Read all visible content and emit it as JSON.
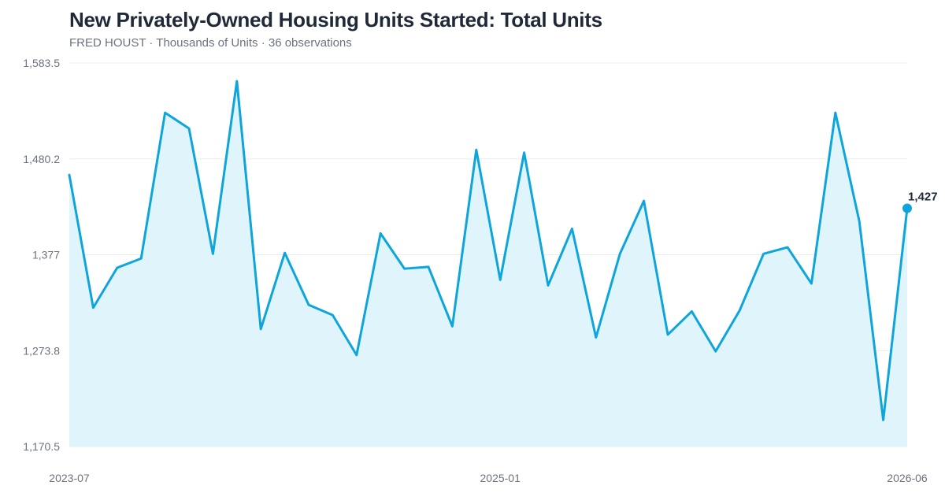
{
  "chart_data": {
    "type": "line",
    "title": "New Privately-Owned Housing Units Started: Total Units",
    "subtitle": "FRED HOUST · Thousands of Units · 36 observations",
    "y_ticks": [
      "1,583.5",
      "1,480.2",
      "1,377",
      "1,273.8",
      "1,170.5"
    ],
    "x_ticks": [
      "2023-07",
      "2025-01",
      "2026-06"
    ],
    "ylim": [
      1170.5,
      1583.5
    ],
    "grid": true,
    "end_label": "1,427",
    "colors": {
      "line": "#0ea5dc",
      "area": "#e0f4fb",
      "grid": "#e8ecf0",
      "baseline": "#d6eef7"
    },
    "series": [
      {
        "x": [
          "2023-07",
          "2023-08",
          "2023-09",
          "2023-10",
          "2023-11",
          "2023-12",
          "2024-01",
          "2024-02",
          "2024-03",
          "2024-04",
          "2024-05",
          "2024-06",
          "2024-07",
          "2024-08",
          "2024-09",
          "2024-10",
          "2024-11",
          "2024-12",
          "2025-01",
          "2025-02",
          "2025-03",
          "2025-04",
          "2025-05",
          "2025-06",
          "2025-07",
          "2025-08",
          "2025-09",
          "2025-10",
          "2025-11",
          "2025-12",
          "2026-01",
          "2026-02",
          "2026-03",
          "2026-04",
          "2026-05",
          "2026-06"
        ],
        "values": [
          1463,
          1320,
          1363,
          1373,
          1530,
          1513,
          1378,
          1564,
          1297,
          1379,
          1323,
          1312,
          1269,
          1400,
          1362,
          1364,
          1300,
          1490,
          1350,
          1487,
          1344,
          1405,
          1288,
          1378,
          1435,
          1291,
          1316,
          1273,
          1317,
          1378,
          1385,
          1346,
          1530,
          1413,
          1199,
          1427
        ]
      }
    ]
  }
}
